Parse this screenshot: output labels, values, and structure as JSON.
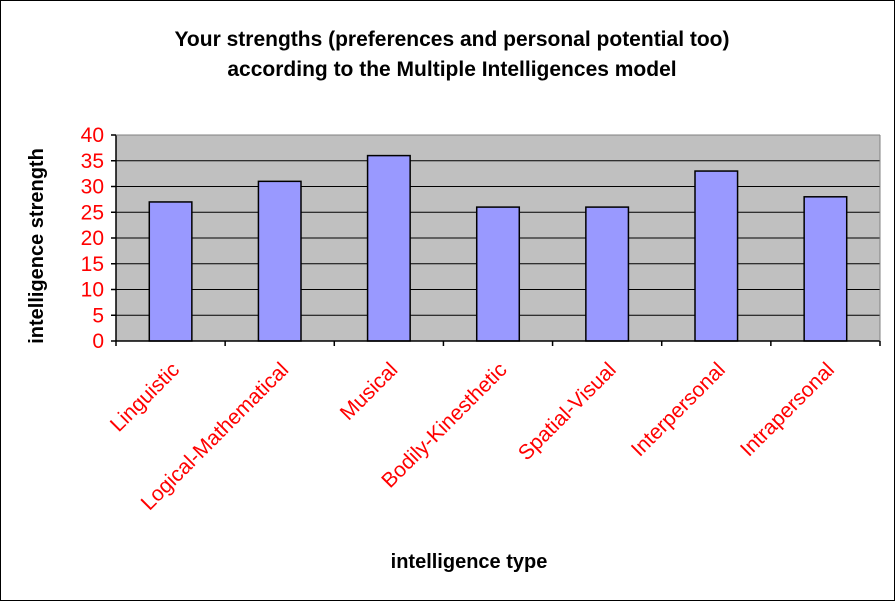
{
  "chart_data": {
    "type": "bar",
    "title": "Your strengths (preferences and personal potential too)",
    "subtitle": "according to the Multiple Intelligences model",
    "xlabel": "intelligence type",
    "ylabel": "intelligence strength",
    "categories": [
      "Linguistic",
      "Logical-Mathematical",
      "Musical",
      "Bodily-Kinesthetic",
      "Spatial-Visual",
      "Interpersonal",
      "Intrapersonal"
    ],
    "values": [
      27,
      31,
      36,
      26,
      26,
      33,
      28
    ],
    "ylim": [
      0,
      40
    ],
    "yticks": [
      "0",
      "5",
      "10",
      "15",
      "20",
      "25",
      "30",
      "35",
      "40"
    ],
    "grid": true,
    "legend": "none",
    "colors": {
      "bar_fill": "#9999ff",
      "plot_background": "#c0c0c0",
      "tick_labels": "#ff0000",
      "text": "#000000"
    }
  }
}
